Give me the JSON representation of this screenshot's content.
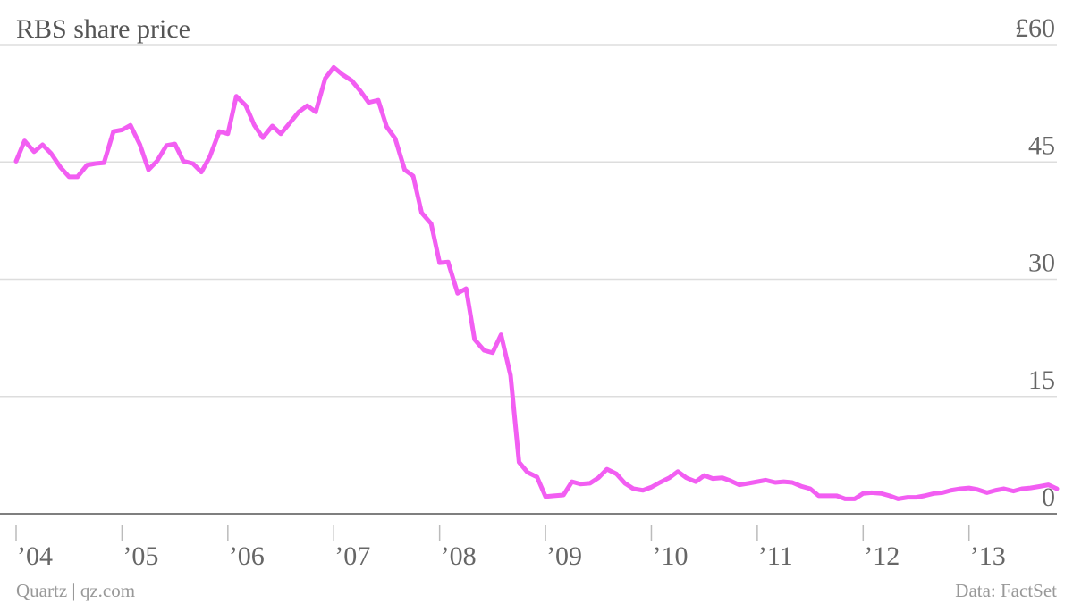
{
  "chart_data": {
    "type": "line",
    "title": "RBS share price",
    "source": "Quartz | qz.com",
    "credit": "Data: FactSet",
    "x": [
      2004.0,
      2004.08,
      2004.17,
      2004.25,
      2004.33,
      2004.42,
      2004.5,
      2004.58,
      2004.67,
      2004.75,
      2004.83,
      2004.92,
      2005.0,
      2005.08,
      2005.17,
      2005.25,
      2005.33,
      2005.42,
      2005.5,
      2005.58,
      2005.67,
      2005.75,
      2005.83,
      2005.92,
      2006.0,
      2006.08,
      2006.17,
      2006.25,
      2006.33,
      2006.42,
      2006.5,
      2006.58,
      2006.67,
      2006.75,
      2006.83,
      2006.92,
      2007.0,
      2007.08,
      2007.17,
      2007.25,
      2007.33,
      2007.42,
      2007.5,
      2007.58,
      2007.67,
      2007.75,
      2007.83,
      2007.92,
      2008.0,
      2008.08,
      2008.17,
      2008.25,
      2008.33,
      2008.42,
      2008.5,
      2008.58,
      2008.67,
      2008.75,
      2008.83,
      2008.92,
      2009.0,
      2009.08,
      2009.17,
      2009.25,
      2009.33,
      2009.42,
      2009.5,
      2009.58,
      2009.67,
      2009.75,
      2009.83,
      2009.92,
      2010.0,
      2010.08,
      2010.17,
      2010.25,
      2010.33,
      2010.42,
      2010.5,
      2010.58,
      2010.67,
      2010.75,
      2010.83,
      2010.92,
      2011.0,
      2011.08,
      2011.17,
      2011.25,
      2011.33,
      2011.42,
      2011.5,
      2011.58,
      2011.67,
      2011.75,
      2011.83,
      2011.92,
      2012.0,
      2012.08,
      2012.17,
      2012.25,
      2012.33,
      2012.42,
      2012.5,
      2012.58,
      2012.67,
      2012.75,
      2012.83,
      2012.92,
      2013.0,
      2013.08,
      2013.17,
      2013.25,
      2013.33,
      2013.42,
      2013.5,
      2013.58,
      2013.67,
      2013.75,
      2013.83
    ],
    "series": [
      {
        "name": "RBS share price",
        "color": "#f25ef2",
        "values": [
          45.1,
          47.7,
          46.3,
          47.2,
          46.1,
          44.3,
          43.1,
          43.1,
          44.6,
          44.8,
          44.9,
          48.9,
          49.1,
          49.7,
          47.2,
          44.0,
          45.1,
          47.1,
          47.3,
          45.1,
          44.8,
          43.7,
          45.7,
          48.9,
          48.6,
          53.4,
          52.2,
          49.7,
          48.1,
          49.6,
          48.6,
          49.9,
          51.4,
          52.2,
          51.4,
          55.7,
          57.1,
          56.2,
          55.4,
          54.1,
          52.6,
          52.9,
          49.5,
          48.0,
          44.0,
          43.2,
          38.5,
          37.1,
          32.1,
          32.2,
          28.2,
          28.8,
          22.3,
          20.9,
          20.6,
          22.9,
          17.7,
          6.6,
          5.3,
          4.7,
          2.2,
          2.3,
          2.4,
          4.1,
          3.8,
          3.9,
          4.6,
          5.7,
          5.1,
          3.9,
          3.2,
          3.0,
          3.4,
          4.0,
          4.6,
          5.4,
          4.6,
          4.1,
          4.9,
          4.5,
          4.6,
          4.2,
          3.7,
          3.9,
          4.1,
          4.3,
          4.0,
          4.1,
          4.0,
          3.5,
          3.2,
          2.3,
          2.3,
          2.3,
          1.9,
          1.9,
          2.6,
          2.7,
          2.6,
          2.3,
          1.9,
          2.1,
          2.1,
          2.3,
          2.6,
          2.7,
          3.0,
          3.2,
          3.3,
          3.1,
          2.7,
          3.0,
          3.2,
          2.9,
          3.2,
          3.3,
          3.5,
          3.7,
          3.2
        ]
      }
    ],
    "xlim": [
      2004.0,
      2013.83
    ],
    "xticks": [
      {
        "value": 2004,
        "label": "’04"
      },
      {
        "value": 2005,
        "label": "’05"
      },
      {
        "value": 2006,
        "label": "’06"
      },
      {
        "value": 2007,
        "label": "’07"
      },
      {
        "value": 2008,
        "label": "’08"
      },
      {
        "value": 2009,
        "label": "’09"
      },
      {
        "value": 2010,
        "label": "’10"
      },
      {
        "value": 2011,
        "label": "’11"
      },
      {
        "value": 2012,
        "label": "’12"
      },
      {
        "value": 2013,
        "label": "’13"
      }
    ],
    "ylim": [
      0,
      60
    ],
    "yticks": [
      0,
      15,
      30,
      45,
      {
        "value": 60,
        "label": "£60"
      }
    ],
    "grid": true
  }
}
